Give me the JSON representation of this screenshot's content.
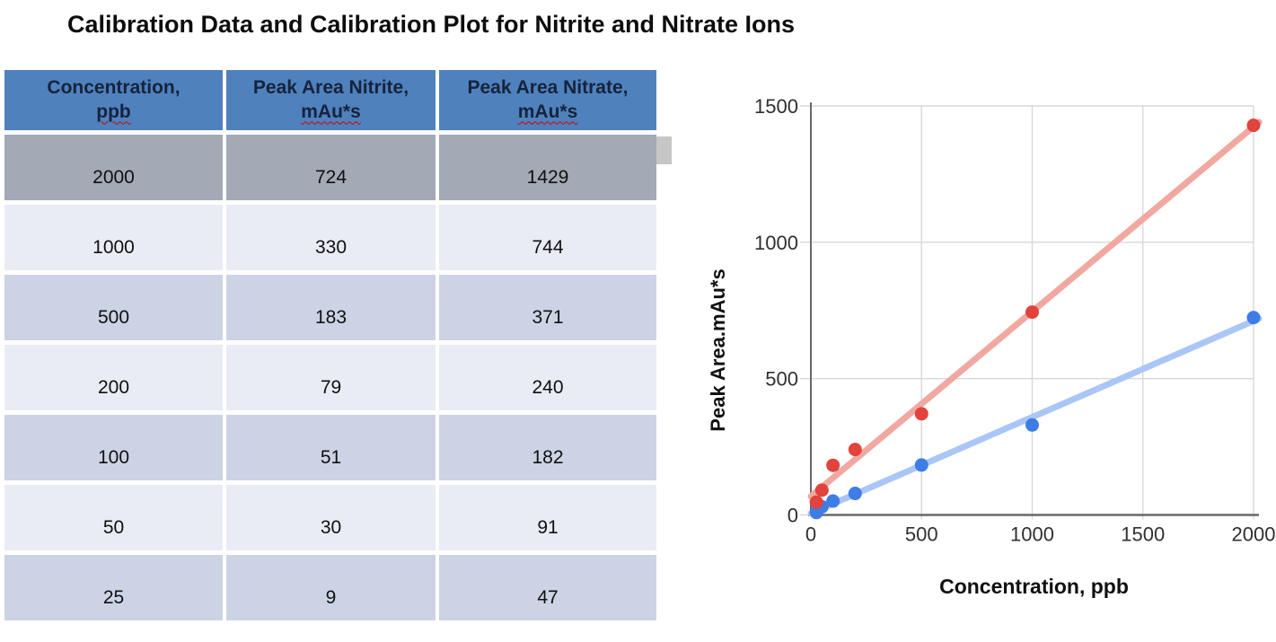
{
  "title": "Calibration Data and Calibration Plot for Nitrite and Nitrate Ions",
  "table": {
    "headers": [
      {
        "title": "Concentration,",
        "unit": "ppb"
      },
      {
        "title": "Peak Area Nitrite,",
        "unit": "mAu*s"
      },
      {
        "title": "Peak Area Nitrate,",
        "unit": "mAu*s"
      }
    ],
    "rows": [
      [
        "2000",
        "724",
        "1429"
      ],
      [
        "1000",
        "330",
        "744"
      ],
      [
        "500",
        "183",
        "371"
      ],
      [
        "200",
        "79",
        "240"
      ],
      [
        "100",
        "51",
        "182"
      ],
      [
        "50",
        "30",
        "91"
      ],
      [
        "25",
        "9",
        "47"
      ]
    ],
    "highlighted_row_index": 0
  },
  "chart_data": {
    "type": "scatter",
    "x": [
      25,
      50,
      100,
      200,
      500,
      1000,
      2000
    ],
    "series": [
      {
        "name": "Peak Area Nitrite",
        "values": [
          9,
          30,
          51,
          79,
          183,
          330,
          724
        ],
        "point_color": "#3e7ce6",
        "trend_color": "#aac6f7",
        "trend": {
          "intercept": 6,
          "slope": 0.3527
        }
      },
      {
        "name": "Peak Area Nitrate",
        "values": [
          47,
          91,
          182,
          240,
          371,
          744,
          1429
        ],
        "point_color": "#e2433c",
        "trend_color": "#f0a8a1",
        "trend": {
          "intercept": 68,
          "slope": 0.678
        }
      }
    ],
    "xlabel": "Concentration, ppb",
    "ylabel": "Peak Area.mAu*s",
    "xlim": [
      0,
      2000
    ],
    "ylim": [
      0,
      1500
    ],
    "x_ticks": [
      0,
      500,
      1000,
      1500,
      2000
    ],
    "y_ticks": [
      0,
      500,
      1000,
      1500
    ],
    "grid": true,
    "legend": "none",
    "grid_color": "#d8d8d8",
    "axis_color": "#696969",
    "tick_label_color": "#2f2f2f",
    "axis_title_color": "#111111"
  }
}
